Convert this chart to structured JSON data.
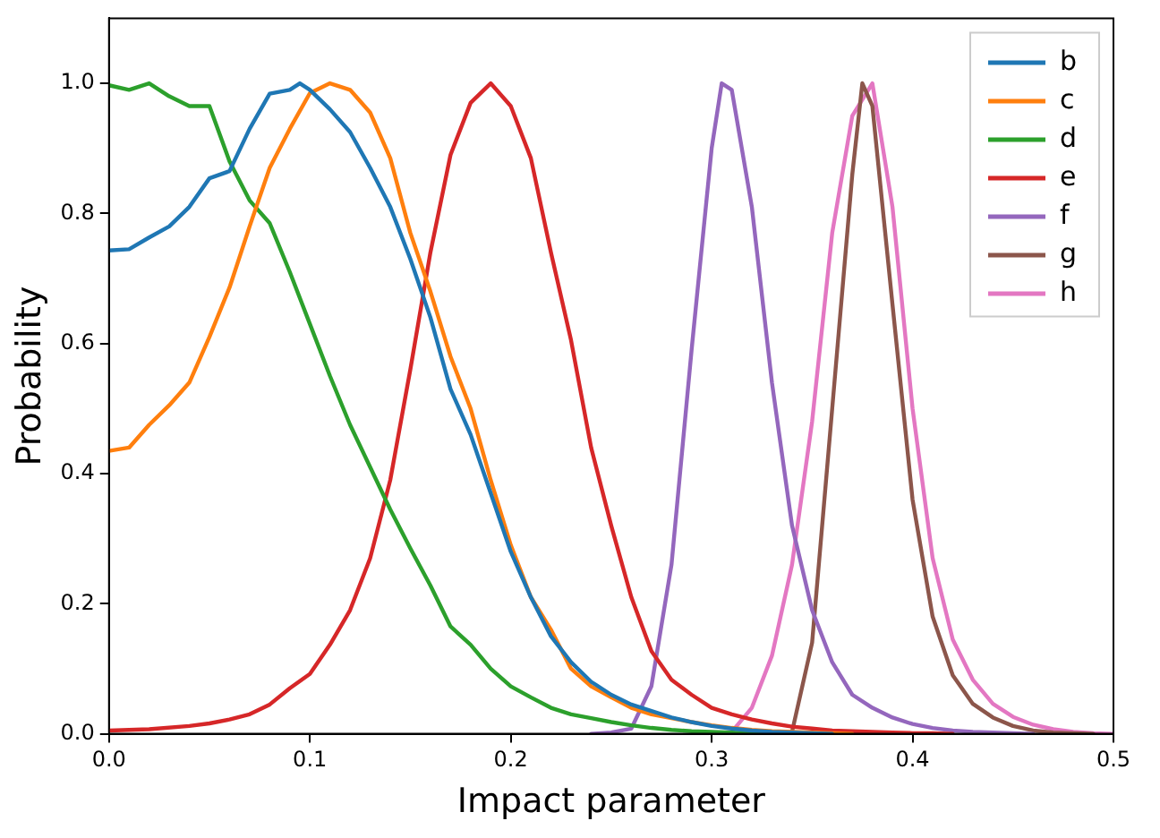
{
  "chart_data": {
    "type": "line",
    "xlabel": "Impact parameter",
    "ylabel": "Probability",
    "xlim": [
      0,
      0.5
    ],
    "ylim": [
      0,
      1.1
    ],
    "xticks": [
      {
        "value": 0,
        "label": "0.0"
      },
      0.1,
      0.2,
      0.3,
      0.4,
      0.5
    ],
    "yticks": [
      {
        "value": 0,
        "label": "0.0"
      },
      0.2,
      0.4,
      0.6,
      0.8,
      {
        "value": 1,
        "label": "1.0"
      }
    ],
    "grid": false,
    "legend": "top right",
    "marker": "none",
    "line_style": "solid",
    "series": [
      {
        "name": "b",
        "color": "#1f77b4",
        "x": [
          0,
          0.01,
          0.02,
          0.03,
          0.04,
          0.05,
          0.06,
          0.07,
          0.08,
          0.09,
          0.095,
          0.1,
          0.11,
          0.12,
          0.13,
          0.14,
          0.15,
          0.16,
          0.17,
          0.18,
          0.19,
          0.2,
          0.21,
          0.22,
          0.23,
          0.24,
          0.25,
          0.26,
          0.27,
          0.28,
          0.29,
          0.3,
          0.31,
          0.32,
          0.33,
          0.34,
          0.35,
          0.36
        ],
        "values": [
          0.743,
          0.745,
          0.763,
          0.78,
          0.81,
          0.854,
          0.865,
          0.93,
          0.984,
          0.99,
          1.0,
          0.99,
          0.96,
          0.925,
          0.87,
          0.81,
          0.73,
          0.64,
          0.53,
          0.46,
          0.37,
          0.28,
          0.21,
          0.15,
          0.11,
          0.08,
          0.06,
          0.045,
          0.035,
          0.025,
          0.018,
          0.012,
          0.008,
          0.005,
          0.003,
          0.002,
          0.001,
          0
        ]
      },
      {
        "name": "c",
        "color": "#ff7f0e",
        "x": [
          0,
          0.01,
          0.02,
          0.03,
          0.04,
          0.05,
          0.06,
          0.07,
          0.08,
          0.09,
          0.1,
          0.11,
          0.12,
          0.13,
          0.14,
          0.15,
          0.16,
          0.17,
          0.18,
          0.19,
          0.2,
          0.21,
          0.22,
          0.23,
          0.24,
          0.25,
          0.26,
          0.27,
          0.28,
          0.29,
          0.3,
          0.31,
          0.32,
          0.33,
          0.34,
          0.35,
          0.36,
          0.37
        ],
        "values": [
          0.435,
          0.44,
          0.475,
          0.505,
          0.54,
          0.61,
          0.686,
          0.78,
          0.87,
          0.93,
          0.985,
          1.0,
          0.99,
          0.955,
          0.885,
          0.77,
          0.68,
          0.58,
          0.5,
          0.39,
          0.29,
          0.21,
          0.16,
          0.1,
          0.073,
          0.056,
          0.04,
          0.03,
          0.024,
          0.018,
          0.013,
          0.009,
          0.006,
          0.004,
          0.003,
          0.002,
          0.001,
          0
        ]
      },
      {
        "name": "d",
        "color": "#2ca02c",
        "x": [
          0,
          0.01,
          0.02,
          0.03,
          0.04,
          0.05,
          0.06,
          0.07,
          0.08,
          0.09,
          0.1,
          0.11,
          0.12,
          0.13,
          0.14,
          0.15,
          0.16,
          0.17,
          0.18,
          0.19,
          0.2,
          0.21,
          0.22,
          0.23,
          0.24,
          0.25,
          0.26,
          0.27,
          0.28,
          0.29,
          0.3,
          0.31,
          0.32,
          0.33
        ],
        "values": [
          0.997,
          0.99,
          1.0,
          0.98,
          0.965,
          0.965,
          0.88,
          0.82,
          0.785,
          0.71,
          0.63,
          0.55,
          0.475,
          0.41,
          0.345,
          0.285,
          0.228,
          0.165,
          0.137,
          0.1,
          0.073,
          0.056,
          0.04,
          0.03,
          0.024,
          0.018,
          0.013,
          0.009,
          0.006,
          0.004,
          0.003,
          0.002,
          0.001,
          0
        ]
      },
      {
        "name": "e",
        "color": "#d62728",
        "x": [
          0,
          0.02,
          0.04,
          0.05,
          0.06,
          0.07,
          0.08,
          0.09,
          0.1,
          0.11,
          0.12,
          0.13,
          0.14,
          0.15,
          0.16,
          0.17,
          0.18,
          0.19,
          0.2,
          0.21,
          0.22,
          0.23,
          0.24,
          0.25,
          0.26,
          0.27,
          0.28,
          0.29,
          0.3,
          0.31,
          0.32,
          0.33,
          0.34,
          0.35,
          0.36,
          0.37,
          0.38,
          0.39,
          0.4,
          0.41,
          0.42
        ],
        "values": [
          0.005,
          0.007,
          0.012,
          0.016,
          0.022,
          0.03,
          0.045,
          0.07,
          0.092,
          0.137,
          0.19,
          0.27,
          0.39,
          0.56,
          0.74,
          0.89,
          0.97,
          1.0,
          0.965,
          0.885,
          0.74,
          0.605,
          0.44,
          0.32,
          0.21,
          0.127,
          0.083,
          0.06,
          0.04,
          0.03,
          0.022,
          0.016,
          0.011,
          0.008,
          0.005,
          0.004,
          0.003,
          0.002,
          0.001,
          0.001,
          0
        ]
      },
      {
        "name": "f",
        "color": "#9467bd",
        "x": [
          0.24,
          0.25,
          0.26,
          0.27,
          0.28,
          0.29,
          0.3,
          0.305,
          0.31,
          0.32,
          0.33,
          0.34,
          0.35,
          0.36,
          0.37,
          0.38,
          0.39,
          0.4,
          0.41,
          0.42,
          0.43,
          0.44,
          0.45,
          0.46
        ],
        "values": [
          0,
          0.002,
          0.008,
          0.073,
          0.26,
          0.59,
          0.9,
          1.0,
          0.99,
          0.81,
          0.54,
          0.32,
          0.19,
          0.11,
          0.06,
          0.04,
          0.025,
          0.015,
          0.009,
          0.005,
          0.003,
          0.002,
          0.001,
          0
        ]
      },
      {
        "name": "g",
        "color": "#8c564b",
        "x": [
          0.33,
          0.34,
          0.35,
          0.36,
          0.37,
          0.375,
          0.38,
          0.39,
          0.4,
          0.41,
          0.42,
          0.43,
          0.44,
          0.45,
          0.46,
          0.47,
          0.48,
          0.49
        ],
        "values": [
          0,
          0.003,
          0.14,
          0.5,
          0.86,
          1.0,
          0.965,
          0.66,
          0.36,
          0.18,
          0.09,
          0.046,
          0.025,
          0.012,
          0.005,
          0.002,
          0.001,
          0
        ]
      },
      {
        "name": "h",
        "color": "#e377c2",
        "x": [
          0.3,
          0.31,
          0.32,
          0.33,
          0.34,
          0.35,
          0.36,
          0.37,
          0.38,
          0.39,
          0.4,
          0.41,
          0.42,
          0.43,
          0.44,
          0.45,
          0.46,
          0.47,
          0.48,
          0.49,
          0.5
        ],
        "values": [
          0,
          0.003,
          0.04,
          0.12,
          0.26,
          0.48,
          0.77,
          0.95,
          1.0,
          0.81,
          0.5,
          0.27,
          0.145,
          0.083,
          0.046,
          0.026,
          0.014,
          0.007,
          0.003,
          0.001,
          0
        ]
      }
    ]
  }
}
